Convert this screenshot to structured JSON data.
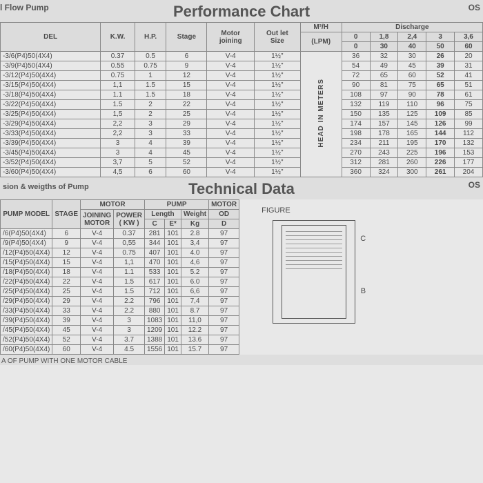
{
  "perf": {
    "title": "Performance Chart",
    "top_left": "l Flow Pump",
    "top_right": "OS",
    "headers": {
      "model": "DEL",
      "kw": "K.W.",
      "hp": "H.P.",
      "stage": "Stage",
      "motor_joining": "Motor\njoining",
      "outlet": "Out let\nSize",
      "m3h": "M³/H",
      "lpm": "(LPM)",
      "discharge": "Discharge",
      "disch_top": [
        "0",
        "1,8",
        "2,4",
        "3",
        "3,6"
      ],
      "disch_bot": [
        "0",
        "30",
        "40",
        "50",
        "60"
      ],
      "head_label": "HEAD IN METERS"
    },
    "rows": [
      {
        "model": "-3/6(P4)50(4X4)",
        "kw": "0.37",
        "hp": "0.5",
        "stage": "6",
        "mj": "V-4",
        "out": "1½\"",
        "d": [
          "36",
          "32",
          "30",
          "26",
          "20"
        ]
      },
      {
        "model": "-3/9(P4)50(4X4)",
        "kw": "0.55",
        "hp": "0.75",
        "stage": "9",
        "mj": "V-4",
        "out": "1½\"",
        "d": [
          "54",
          "49",
          "45",
          "39",
          "31"
        ]
      },
      {
        "model": "-3/12(P4)50(4X4)",
        "kw": "0.75",
        "hp": "1",
        "stage": "12",
        "mj": "V-4",
        "out": "1½\"",
        "d": [
          "72",
          "65",
          "60",
          "52",
          "41"
        ]
      },
      {
        "model": "-3/15(P4)50(4X4)",
        "kw": "1,1",
        "hp": "1.5",
        "stage": "15",
        "mj": "V-4",
        "out": "1½\"",
        "d": [
          "90",
          "81",
          "75",
          "65",
          "51"
        ]
      },
      {
        "model": "-3/18(P4)50(4X4)",
        "kw": "1.1",
        "hp": "1.5",
        "stage": "18",
        "mj": "V-4",
        "out": "1½\"",
        "d": [
          "108",
          "97",
          "90",
          "78",
          "61"
        ]
      },
      {
        "model": "-3/22(P4)50(4X4)",
        "kw": "1.5",
        "hp": "2",
        "stage": "22",
        "mj": "V-4",
        "out": "1½\"",
        "d": [
          "132",
          "119",
          "110",
          "96",
          "75"
        ]
      },
      {
        "model": "-3/25(P4)50(4X4)",
        "kw": "1,5",
        "hp": "2",
        "stage": "25",
        "mj": "V-4",
        "out": "1½\"",
        "d": [
          "150",
          "135",
          "125",
          "109",
          "85"
        ]
      },
      {
        "model": "-3/29(P4)50(4X4)",
        "kw": "2,2",
        "hp": "3",
        "stage": "29",
        "mj": "V-4",
        "out": "1½\"",
        "d": [
          "174",
          "157",
          "145",
          "126",
          "99"
        ]
      },
      {
        "model": "-3/33(P4)50(4X4)",
        "kw": "2,2",
        "hp": "3",
        "stage": "33",
        "mj": "V-4",
        "out": "1½\"",
        "d": [
          "198",
          "178",
          "165",
          "144",
          "112"
        ]
      },
      {
        "model": "-3/39(P4)50(4X4)",
        "kw": "3",
        "hp": "4",
        "stage": "39",
        "mj": "V-4",
        "out": "1½\"",
        "d": [
          "234",
          "211",
          "195",
          "170",
          "132"
        ]
      },
      {
        "model": "-3/45(P4)50(4X4)",
        "kw": "3",
        "hp": "4",
        "stage": "45",
        "mj": "V-4",
        "out": "1½\"",
        "d": [
          "270",
          "243",
          "225",
          "196",
          "153"
        ]
      },
      {
        "model": "-3/52(P4)50(4X4)",
        "kw": "3,7",
        "hp": "5",
        "stage": "52",
        "mj": "V-4",
        "out": "1½\"",
        "d": [
          "312",
          "281",
          "260",
          "226",
          "177"
        ]
      },
      {
        "model": "-3/60(P4)50(4X4)",
        "kw": "4,5",
        "hp": "6",
        "stage": "60",
        "mj": "V-4",
        "out": "1½\"",
        "d": [
          "360",
          "324",
          "300",
          "261",
          "204"
        ]
      }
    ]
  },
  "tech": {
    "title": "Technical Data",
    "sub_left": "sion & weigths of Pump",
    "top_right": "OS",
    "figure_label": "FIGURE",
    "dim_c": "C",
    "dim_b": "B",
    "headers": {
      "model": "PUMP MODEL",
      "stage": "STAGE",
      "motor_group": "MOTOR",
      "joining": "JOINING\nMOTOR",
      "power": "POWER\n( KW )",
      "pump_group": "PUMP",
      "length": "Length",
      "c": "C",
      "e": "E*",
      "weight": "Weight",
      "kg": "Kg",
      "motor2": "MOTOR",
      "od": "OD",
      "d": "D"
    },
    "rows": [
      {
        "model": "/6(P4)50(4X4)",
        "stage": "6",
        "jm": "V-4",
        "kw": "0.37",
        "c": "281",
        "e": "101",
        "kg": "2.8",
        "d": "97"
      },
      {
        "model": "/9(P4)50(4X4)",
        "stage": "9",
        "jm": "V-4",
        "kw": "0,55",
        "c": "344",
        "e": "101",
        "kg": "3,4",
        "d": "97"
      },
      {
        "model": "/12(P4)50(4X4)",
        "stage": "12",
        "jm": "V-4",
        "kw": "0.75",
        "c": "407",
        "e": "101",
        "kg": "4.0",
        "d": "97"
      },
      {
        "model": "/15(P4)50(4X4)",
        "stage": "15",
        "jm": "V-4",
        "kw": "1,1",
        "c": "470",
        "e": "101",
        "kg": "4,6",
        "d": "97"
      },
      {
        "model": "/18(P4)50(4X4)",
        "stage": "18",
        "jm": "V-4",
        "kw": "1.1",
        "c": "533",
        "e": "101",
        "kg": "5.2",
        "d": "97"
      },
      {
        "model": "/22(P4)50(4X4)",
        "stage": "22",
        "jm": "V-4",
        "kw": "1.5",
        "c": "617",
        "e": "101",
        "kg": "6.0",
        "d": "97"
      },
      {
        "model": "/25(P4)50(4X4)",
        "stage": "25",
        "jm": "V-4",
        "kw": "1.5",
        "c": "712",
        "e": "101",
        "kg": "6,6",
        "d": "97"
      },
      {
        "model": "/29(P4)50(4X4)",
        "stage": "29",
        "jm": "V-4",
        "kw": "2.2",
        "c": "796",
        "e": "101",
        "kg": "7,4",
        "d": "97"
      },
      {
        "model": "/33(P4)50(4X4)",
        "stage": "33",
        "jm": "V-4",
        "kw": "2.2",
        "c": "880",
        "e": "101",
        "kg": "8.7",
        "d": "97"
      },
      {
        "model": "/39(P4)50(4X4)",
        "stage": "39",
        "jm": "V-4",
        "kw": "3",
        "c": "1083",
        "e": "101",
        "kg": "11,0",
        "d": "97"
      },
      {
        "model": "/45(P4)50(4X4)",
        "stage": "45",
        "jm": "V-4",
        "kw": "3",
        "c": "1209",
        "e": "101",
        "kg": "12.2",
        "d": "97"
      },
      {
        "model": "/52(P4)50(4X4)",
        "stage": "52",
        "jm": "V-4",
        "kw": "3.7",
        "c": "1388",
        "e": "101",
        "kg": "13.6",
        "d": "97"
      },
      {
        "model": "/60(P4)50(4X4)",
        "stage": "60",
        "jm": "V-4",
        "kw": "4.5",
        "c": "1556",
        "e": "101",
        "kg": "15.7",
        "d": "97"
      }
    ],
    "footer": "A OF PUMP WITH ONE MOTOR CABLE"
  },
  "style": {
    "bg": "#e8e8e8",
    "header_bg": "#dcdcdc",
    "border": "#888888",
    "text": "#4a4a4a",
    "title_size_pt": 16,
    "cell_size_pt": 8
  }
}
